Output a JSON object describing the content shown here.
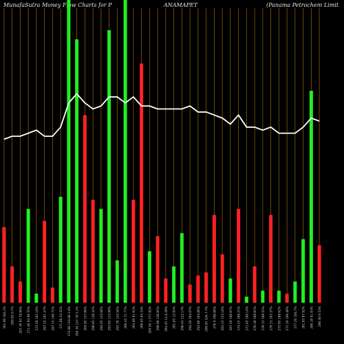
{
  "header": {
    "left": "MunafaSutra  Money Flow  Charts for P",
    "middle": "ANAMAPET",
    "right": "(Panama  Petrochem Limit"
  },
  "colors": {
    "background": "#000000",
    "up": "#22ee22",
    "down": "#ff2222",
    "grid": "#8a5a0f",
    "line": "#ffffff"
  },
  "chart_data": {
    "type": "bar",
    "ylim": [
      0,
      100
    ],
    "line_ylim": [
      0,
      100
    ],
    "categories": [
      "281.90 104.2%",
      "269.65 0.7%",
      "267.70 67.79.09%",
      "271.40 83.99 55%",
      "272.40 101.18%",
      "267.25 101.47%",
      "267.15 140 72%",
      "271.86 24.32%",
      "274.80 118.88 2.8%",
      "294.30 127.78 2.2%",
      "304.85 137.80%",
      "296.65 130.32%",
      "294.05 125.08%",
      "293.95 114.90%",
      "293.78 124.50%",
      "290.45 71.77%",
      "293.80 91.93%",
      "290.65 84.33%",
      "294.95 1.777.65%",
      "298.90 136.95%",
      "294.45 14.8.29%",
      "291.85 12.95%",
      "296.45 122.17%",
      "294.20 104.07%",
      "292.80 104.86%",
      "290.05 104.7.7%",
      "276 0.700.00%",
      "283.15 153.10%",
      "287.20 166.67%",
      "274.25 169.25%",
      "271.45 169.14%",
      "276.30 169.65%",
      "279.15 169.55%",
      "279.15 163.37%",
      "275.85 169.62%",
      "272.10 166.48%",
      "277.20 104.7%",
      "281.95 87.92%",
      "290.10 91.63%",
      "280.30 0.53%"
    ],
    "series": [
      {
        "values": [
          25,
          12,
          7,
          31,
          3,
          27,
          5,
          35,
          100,
          87,
          62,
          34,
          31,
          90,
          14,
          100,
          34,
          79,
          17,
          22,
          8,
          12,
          23,
          6,
          9,
          10,
          29,
          16,
          8,
          31,
          2,
          12,
          4,
          29,
          4,
          3,
          7,
          21,
          70,
          19
        ],
        "colors": [
          "down",
          "down",
          "down",
          "up",
          "up",
          "down",
          "down",
          "up",
          "up",
          "up",
          "down",
          "down",
          "up",
          "up",
          "up",
          "up",
          "down",
          "down",
          "up",
          "down",
          "down",
          "up",
          "up",
          "down",
          "down",
          "down",
          "down",
          "down",
          "up",
          "down",
          "up",
          "down",
          "up",
          "down",
          "up",
          "down",
          "up",
          "up",
          "up",
          "down"
        ]
      }
    ],
    "line": [
      54,
      55,
      55,
      56,
      57,
      55,
      55,
      58,
      66,
      69,
      66,
      64,
      65,
      68,
      68,
      66,
      68,
      65,
      65,
      64,
      64,
      64,
      64,
      65,
      63,
      63,
      62,
      61,
      59,
      62,
      58,
      58,
      57,
      58,
      56,
      56,
      56,
      58,
      61,
      60
    ]
  }
}
